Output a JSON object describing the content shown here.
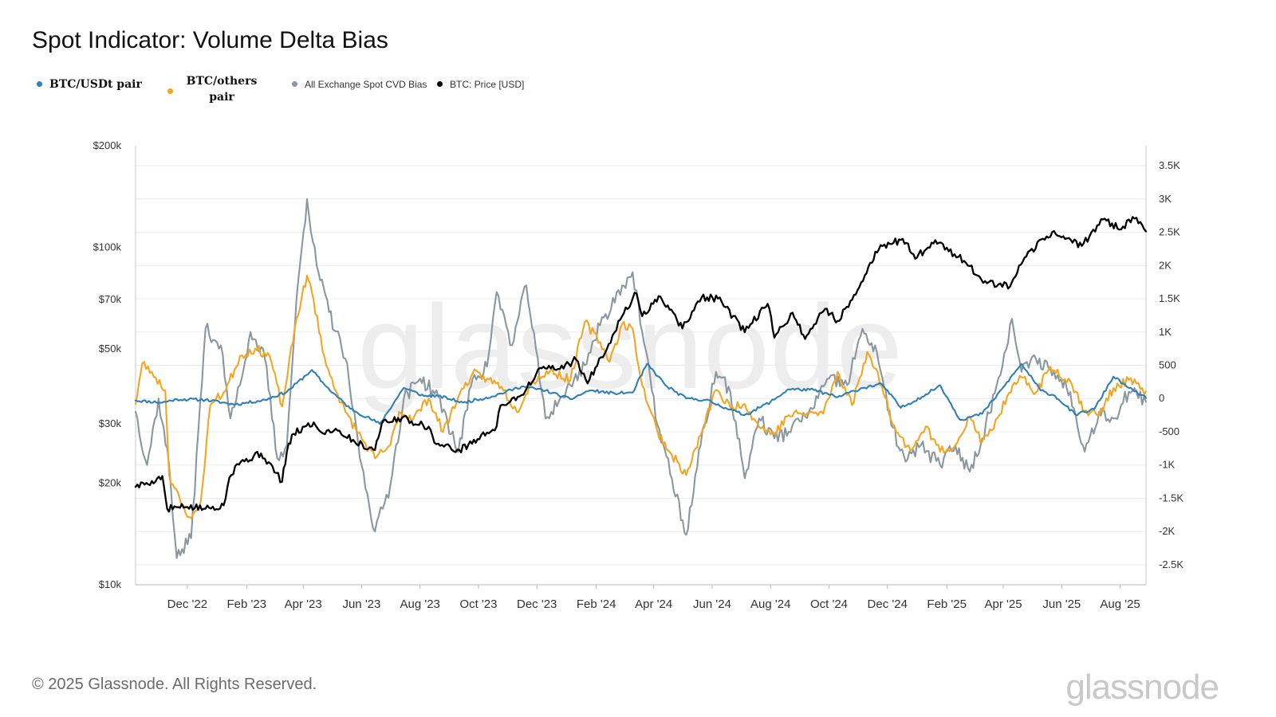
{
  "title": "Spot Indicator: Volume Delta Bias",
  "footer": {
    "copyright": "© 2025 Glassnode. All Rights Reserved.",
    "logo": "glassnode"
  },
  "watermark": "glassnode",
  "colors": {
    "btc_usdt": "#2f7fb8",
    "btc_others": "#f4a522",
    "all_exchange": "#8b979f",
    "price": "#000000"
  },
  "chart_data": {
    "type": "line",
    "title": "Spot Indicator: Volume Delta Bias",
    "legend": {
      "placement": "top-left",
      "entries": [
        "BTC/USDt pair",
        "BTC/others pair",
        "All Exchange Spot CVD Bias",
        "BTC: Price [USD]"
      ]
    },
    "x_ticks": [
      "Dec '22",
      "Feb '23",
      "Apr '23",
      "Jun '23",
      "Aug '23",
      "Oct '23",
      "Dec '23",
      "Feb '24",
      "Apr '24",
      "Jun '24",
      "Aug '24",
      "Oct '24",
      "Dec '24",
      "Feb '25",
      "Apr '25",
      "Jun '25",
      "Aug '25"
    ],
    "x_range": [
      "2022-10-08",
      "2025-08-28"
    ],
    "y_left": {
      "scale": "log",
      "range": [
        10000,
        200000
      ],
      "ticks": [
        10000,
        20000,
        30000,
        50000,
        70000,
        100000,
        200000
      ],
      "tick_labels": [
        "$10k",
        "$20k",
        "$30k",
        "$50k",
        "$70k",
        "$100k",
        "$200k"
      ]
    },
    "y_right": {
      "scale": "linear",
      "range": [
        -2800,
        3800
      ],
      "ticks": [
        -2500,
        -2000,
        -1500,
        -1000,
        -500,
        0,
        500,
        1000,
        1500,
        2000,
        2500,
        3000,
        3500
      ],
      "tick_labels": [
        "-2.5K",
        "-2K",
        "-1.5K",
        "-1K",
        "-500",
        "0",
        "500",
        "1K",
        "1.5K",
        "2K",
        "2.5K",
        "3K",
        "3.5K"
      ]
    },
    "grid": true,
    "series": [
      {
        "name": "BTC: Price [USD]",
        "axis": "left",
        "points": [
          [
            "2022-10-08",
            19500
          ],
          [
            "2022-10-25",
            20300
          ],
          [
            "2022-11-05",
            21000
          ],
          [
            "2022-11-10",
            16800
          ],
          [
            "2022-12-01",
            17000
          ],
          [
            "2022-12-20",
            16800
          ],
          [
            "2023-01-08",
            17200
          ],
          [
            "2023-01-14",
            20800
          ],
          [
            "2023-01-22",
            22800
          ],
          [
            "2023-02-16",
            24500
          ],
          [
            "2023-03-10",
            20200
          ],
          [
            "2023-03-15",
            24800
          ],
          [
            "2023-03-22",
            28000
          ],
          [
            "2023-04-12",
            30300
          ],
          [
            "2023-04-20",
            28300
          ],
          [
            "2023-05-05",
            29000
          ],
          [
            "2023-05-25",
            26500
          ],
          [
            "2023-06-15",
            25100
          ],
          [
            "2023-06-22",
            30000
          ],
          [
            "2023-07-13",
            31200
          ],
          [
            "2023-08-10",
            29400
          ],
          [
            "2023-08-18",
            26100
          ],
          [
            "2023-09-11",
            25100
          ],
          [
            "2023-09-30",
            27000
          ],
          [
            "2023-10-20",
            29500
          ],
          [
            "2023-10-24",
            34000
          ],
          [
            "2023-11-15",
            36500
          ],
          [
            "2023-12-06",
            43800
          ],
          [
            "2023-12-25",
            43600
          ],
          [
            "2024-01-11",
            46500
          ],
          [
            "2024-01-23",
            39500
          ],
          [
            "2024-02-14",
            51700
          ],
          [
            "2024-02-28",
            62500
          ],
          [
            "2024-03-14",
            73000
          ],
          [
            "2024-03-20",
            62500
          ],
          [
            "2024-04-08",
            71500
          ],
          [
            "2024-05-01",
            57500
          ],
          [
            "2024-05-21",
            71000
          ],
          [
            "2024-06-07",
            70500
          ],
          [
            "2024-07-05",
            56000
          ],
          [
            "2024-07-29",
            68000
          ],
          [
            "2024-08-05",
            54000
          ],
          [
            "2024-08-24",
            64000
          ],
          [
            "2024-09-06",
            53500
          ],
          [
            "2024-09-27",
            65800
          ],
          [
            "2024-10-10",
            60500
          ],
          [
            "2024-10-29",
            72500
          ],
          [
            "2024-11-13",
            90000
          ],
          [
            "2024-11-22",
            98500
          ],
          [
            "2024-12-17",
            106000
          ],
          [
            "2024-12-30",
            92500
          ],
          [
            "2025-01-20",
            105000
          ],
          [
            "2025-02-25",
            88000
          ],
          [
            "2025-03-11",
            78500
          ],
          [
            "2025-04-08",
            76500
          ],
          [
            "2025-04-25",
            94000
          ],
          [
            "2025-05-22",
            111000
          ],
          [
            "2025-06-22",
            101000
          ],
          [
            "2025-07-14",
            121000
          ],
          [
            "2025-08-02",
            113000
          ],
          [
            "2025-08-14",
            123000
          ],
          [
            "2025-08-28",
            111500
          ]
        ]
      },
      {
        "name": "BTC/USDt pair",
        "axis": "right",
        "points": [
          [
            "2022-10-08",
            -30
          ],
          [
            "2022-11-05",
            -60
          ],
          [
            "2022-11-20",
            -10
          ],
          [
            "2022-12-20",
            -20
          ],
          [
            "2023-01-20",
            -90
          ],
          [
            "2023-02-20",
            -20
          ],
          [
            "2023-03-15",
            100
          ],
          [
            "2023-04-10",
            430
          ],
          [
            "2023-04-25",
            180
          ],
          [
            "2023-05-20",
            -150
          ],
          [
            "2023-06-20",
            -380
          ],
          [
            "2023-07-15",
            160
          ],
          [
            "2023-08-05",
            40
          ],
          [
            "2023-08-20",
            40
          ],
          [
            "2023-09-15",
            -60
          ],
          [
            "2023-10-15",
            30
          ],
          [
            "2023-11-15",
            180
          ],
          [
            "2023-12-10",
            120
          ],
          [
            "2024-01-05",
            -10
          ],
          [
            "2024-01-25",
            120
          ],
          [
            "2024-02-20",
            80
          ],
          [
            "2024-03-10",
            90
          ],
          [
            "2024-03-25",
            520
          ],
          [
            "2024-04-15",
            180
          ],
          [
            "2024-05-05",
            0
          ],
          [
            "2024-05-25",
            -20
          ],
          [
            "2024-06-15",
            -140
          ],
          [
            "2024-07-05",
            -250
          ],
          [
            "2024-08-01",
            -50
          ],
          [
            "2024-08-20",
            140
          ],
          [
            "2024-09-15",
            130
          ],
          [
            "2024-10-10",
            20
          ],
          [
            "2024-11-05",
            160
          ],
          [
            "2024-11-25",
            220
          ],
          [
            "2024-12-15",
            -140
          ],
          [
            "2025-01-10",
            60
          ],
          [
            "2025-01-25",
            200
          ],
          [
            "2025-02-15",
            -320
          ],
          [
            "2025-03-10",
            -230
          ],
          [
            "2025-04-01",
            170
          ],
          [
            "2025-04-20",
            520
          ],
          [
            "2025-05-10",
            120
          ],
          [
            "2025-05-25",
            40
          ],
          [
            "2025-06-15",
            -240
          ],
          [
            "2025-07-05",
            -160
          ],
          [
            "2025-07-25",
            330
          ],
          [
            "2025-08-10",
            160
          ],
          [
            "2025-08-28",
            10
          ]
        ]
      },
      {
        "name": "BTC/others pair",
        "axis": "right",
        "points": [
          [
            "2022-10-08",
            -80
          ],
          [
            "2022-10-15",
            530
          ],
          [
            "2022-10-25",
            400
          ],
          [
            "2022-11-08",
            120
          ],
          [
            "2022-11-12",
            -1150
          ],
          [
            "2022-11-25",
            -1600
          ],
          [
            "2022-12-05",
            -1800
          ],
          [
            "2022-12-15",
            -1550
          ],
          [
            "2022-12-25",
            -100
          ],
          [
            "2023-01-10",
            120
          ],
          [
            "2023-01-25",
            640
          ],
          [
            "2023-02-10",
            750
          ],
          [
            "2023-02-25",
            640
          ],
          [
            "2023-03-10",
            -120
          ],
          [
            "2023-03-25",
            1200
          ],
          [
            "2023-04-05",
            1850
          ],
          [
            "2023-04-10",
            1600
          ],
          [
            "2023-04-25",
            500
          ],
          [
            "2023-05-15",
            -200
          ],
          [
            "2023-06-01",
            -600
          ],
          [
            "2023-06-15",
            -900
          ],
          [
            "2023-07-01",
            -700
          ],
          [
            "2023-07-10",
            -200
          ],
          [
            "2023-07-25",
            -300
          ],
          [
            "2023-08-10",
            0
          ],
          [
            "2023-08-25",
            -500
          ],
          [
            "2023-09-10",
            20
          ],
          [
            "2023-09-25",
            380
          ],
          [
            "2023-10-10",
            300
          ],
          [
            "2023-10-25",
            180
          ],
          [
            "2023-11-10",
            -200
          ],
          [
            "2023-11-25",
            250
          ],
          [
            "2023-12-15",
            420
          ],
          [
            "2024-01-05",
            280
          ],
          [
            "2024-01-20",
            1150
          ],
          [
            "2024-02-05",
            850
          ],
          [
            "2024-02-15",
            550
          ],
          [
            "2024-02-28",
            1120
          ],
          [
            "2024-03-10",
            1050
          ],
          [
            "2024-03-20",
            200
          ],
          [
            "2024-04-05",
            -500
          ],
          [
            "2024-04-20",
            -850
          ],
          [
            "2024-05-05",
            -1150
          ],
          [
            "2024-05-20",
            -550
          ],
          [
            "2024-06-05",
            130
          ],
          [
            "2024-06-20",
            -140
          ],
          [
            "2024-07-05",
            -80
          ],
          [
            "2024-07-20",
            -430
          ],
          [
            "2024-08-05",
            -530
          ],
          [
            "2024-08-20",
            -250
          ],
          [
            "2024-09-10",
            -220
          ],
          [
            "2024-09-25",
            -230
          ],
          [
            "2024-10-10",
            400
          ],
          [
            "2024-10-25",
            -100
          ],
          [
            "2024-11-10",
            700
          ],
          [
            "2024-11-25",
            200
          ],
          [
            "2024-12-10",
            -500
          ],
          [
            "2024-12-25",
            -780
          ],
          [
            "2025-01-10",
            -420
          ],
          [
            "2025-01-25",
            -800
          ],
          [
            "2025-02-10",
            -700
          ],
          [
            "2025-02-25",
            -280
          ],
          [
            "2025-03-10",
            -650
          ],
          [
            "2025-03-20",
            -480
          ],
          [
            "2025-04-05",
            30
          ],
          [
            "2025-04-20",
            320
          ],
          [
            "2025-05-05",
            90
          ],
          [
            "2025-05-20",
            480
          ],
          [
            "2025-06-10",
            260
          ],
          [
            "2025-06-25",
            -180
          ],
          [
            "2025-07-10",
            -240
          ],
          [
            "2025-07-25",
            160
          ],
          [
            "2025-08-10",
            280
          ],
          [
            "2025-08-28",
            110
          ]
        ]
      },
      {
        "name": "All Exchange Spot CVD Bias",
        "axis": "right",
        "points": [
          [
            "2022-10-08",
            -200
          ],
          [
            "2022-10-20",
            -1000
          ],
          [
            "2022-11-01",
            0
          ],
          [
            "2022-11-12",
            -1000
          ],
          [
            "2022-11-20",
            -2400
          ],
          [
            "2022-12-05",
            -2100
          ],
          [
            "2022-12-20",
            1050
          ],
          [
            "2023-01-05",
            800
          ],
          [
            "2023-01-15",
            -300
          ],
          [
            "2023-01-25",
            200
          ],
          [
            "2023-02-05",
            1000
          ],
          [
            "2023-02-20",
            600
          ],
          [
            "2023-03-05",
            -900
          ],
          [
            "2023-03-15",
            -700
          ],
          [
            "2023-03-25",
            1500
          ],
          [
            "2023-04-05",
            3000
          ],
          [
            "2023-04-15",
            2000
          ],
          [
            "2023-04-28",
            1300
          ],
          [
            "2023-05-15",
            600
          ],
          [
            "2023-06-01",
            -1000
          ],
          [
            "2023-06-15",
            -2000
          ],
          [
            "2023-07-01",
            -1300
          ],
          [
            "2023-07-15",
            0
          ],
          [
            "2023-08-01",
            300
          ],
          [
            "2023-08-20",
            30
          ],
          [
            "2023-09-10",
            -800
          ],
          [
            "2023-09-25",
            300
          ],
          [
            "2023-10-10",
            480
          ],
          [
            "2023-10-20",
            1600
          ],
          [
            "2023-11-05",
            800
          ],
          [
            "2023-11-20",
            1700
          ],
          [
            "2023-12-10",
            -300
          ],
          [
            "2024-01-05",
            200
          ],
          [
            "2024-01-20",
            500
          ],
          [
            "2024-02-05",
            1100
          ],
          [
            "2024-02-28",
            1700
          ],
          [
            "2024-03-10",
            1900
          ],
          [
            "2024-03-20",
            1000
          ],
          [
            "2024-04-05",
            -400
          ],
          [
            "2024-04-20",
            -1200
          ],
          [
            "2024-05-05",
            -2050
          ],
          [
            "2024-05-20",
            -700
          ],
          [
            "2024-06-05",
            400
          ],
          [
            "2024-06-20",
            100
          ],
          [
            "2024-07-05",
            -1200
          ],
          [
            "2024-07-20",
            -300
          ],
          [
            "2024-08-05",
            -600
          ],
          [
            "2024-08-20",
            -500
          ],
          [
            "2024-09-10",
            -200
          ],
          [
            "2024-10-01",
            300
          ],
          [
            "2024-10-20",
            200
          ],
          [
            "2024-11-05",
            1050
          ],
          [
            "2024-11-20",
            700
          ],
          [
            "2024-12-05",
            -400
          ],
          [
            "2024-12-20",
            -950
          ],
          [
            "2025-01-05",
            -700
          ],
          [
            "2025-01-25",
            -1000
          ],
          [
            "2025-02-10",
            -700
          ],
          [
            "2025-02-25",
            -1100
          ],
          [
            "2025-03-10",
            -600
          ],
          [
            "2025-03-25",
            200
          ],
          [
            "2025-04-10",
            1200
          ],
          [
            "2025-04-20",
            400
          ],
          [
            "2025-05-05",
            600
          ],
          [
            "2025-05-20",
            450
          ],
          [
            "2025-06-10",
            100
          ],
          [
            "2025-06-25",
            -800
          ],
          [
            "2025-07-10",
            -200
          ],
          [
            "2025-07-25",
            -300
          ],
          [
            "2025-08-10",
            100
          ],
          [
            "2025-08-28",
            -50
          ]
        ]
      }
    ]
  }
}
